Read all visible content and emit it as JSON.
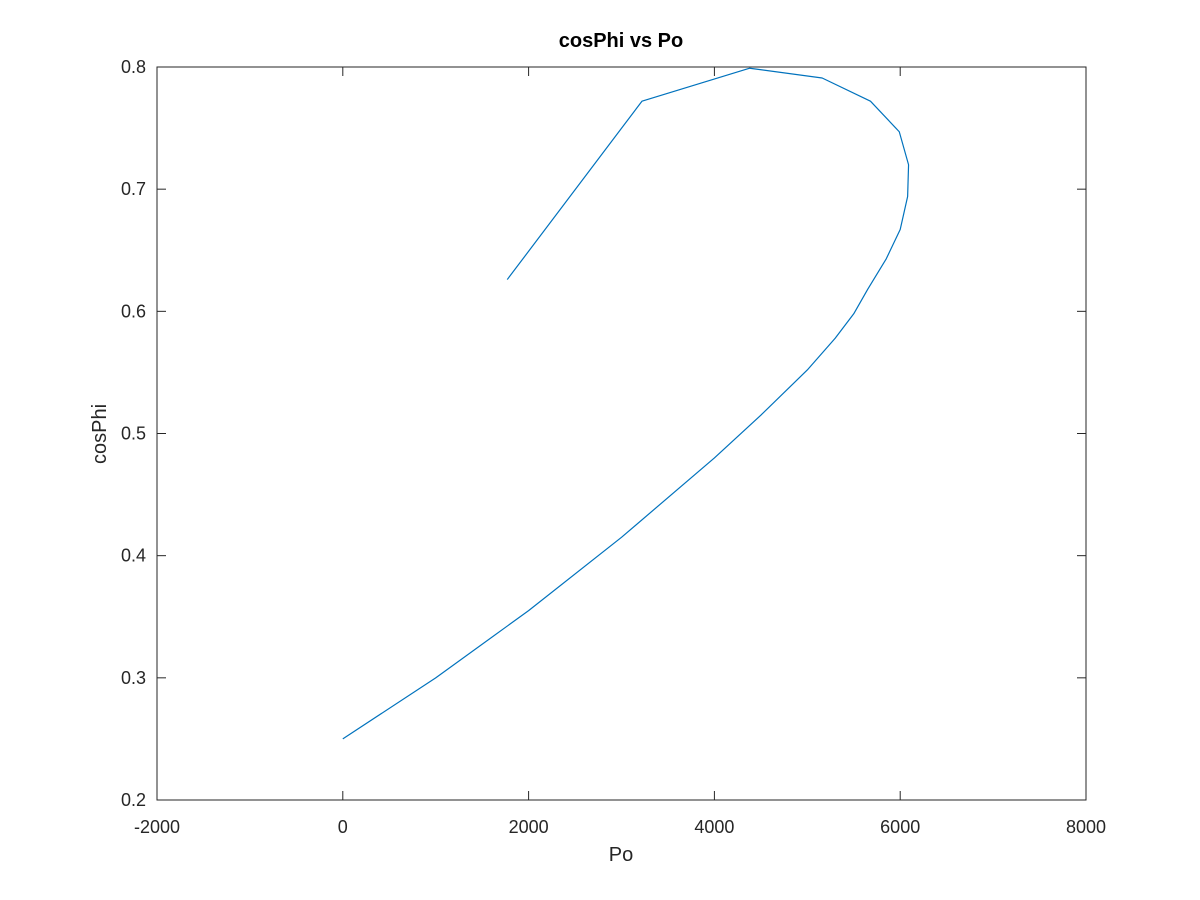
{
  "chart_data": {
    "type": "line",
    "title": "cosPhi vs Po",
    "xlabel": "Po",
    "ylabel": "cosPhi",
    "xlim": [
      -2000,
      8000
    ],
    "ylim": [
      0.2,
      0.8
    ],
    "xticks": [
      -2000,
      0,
      2000,
      4000,
      6000,
      8000
    ],
    "yticks": [
      0.2,
      0.3,
      0.4,
      0.5,
      0.6,
      0.7,
      0.8
    ],
    "xtick_labels": [
      "-2000",
      "0",
      "2000",
      "4000",
      "6000",
      "8000"
    ],
    "ytick_labels": [
      "0.2",
      "0.3",
      "0.4",
      "0.5",
      "0.6",
      "0.7",
      "0.8"
    ],
    "grid": false,
    "legend": "none",
    "line_color": "#0072BD",
    "axis_color": "#262626",
    "series": [
      {
        "x": [
          0,
          1000,
          2000,
          3000,
          4000,
          4500,
          5000,
          5300,
          5500,
          5650,
          5850,
          6000,
          6080,
          6090,
          5990,
          5680,
          5160,
          4380,
          3220,
          1770
        ],
        "y": [
          0.25,
          0.3,
          0.355,
          0.415,
          0.48,
          0.515,
          0.552,
          0.578,
          0.598,
          0.618,
          0.643,
          0.667,
          0.694,
          0.72,
          0.747,
          0.772,
          0.791,
          0.799,
          0.772,
          0.626
        ]
      }
    ]
  }
}
